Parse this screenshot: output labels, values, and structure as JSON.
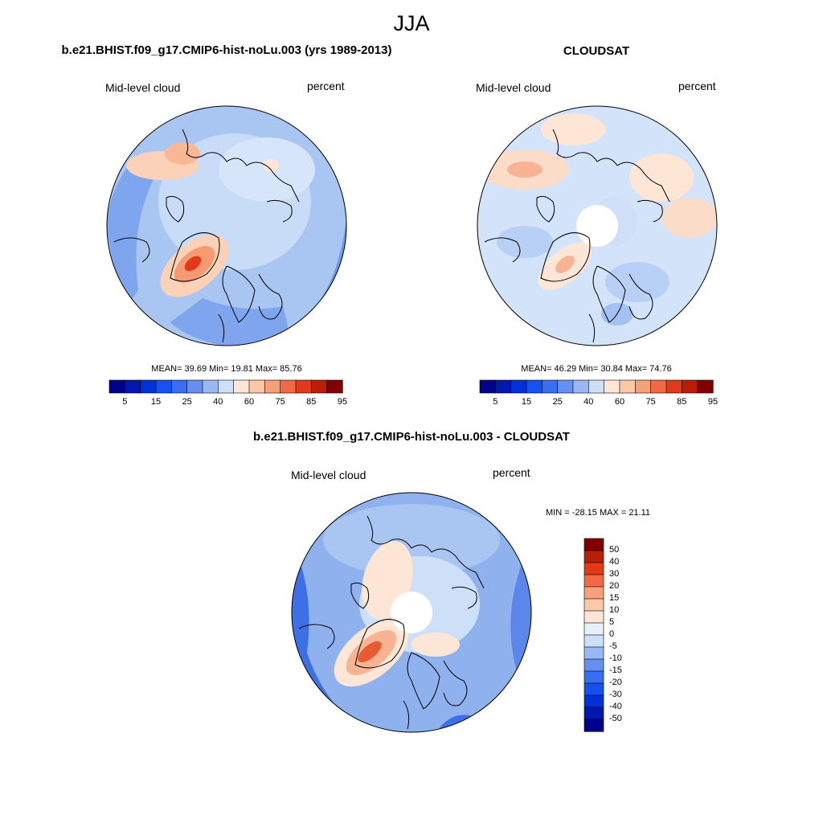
{
  "figure": {
    "season": "JJA",
    "panels": [
      {
        "title": "b.e21.BHIST.f09_g17.CMIP6-hist-noLu.003 (yrs 1989-2013)",
        "variable": "Mid-level cloud",
        "units": "percent",
        "stats": {
          "mean": "39.69",
          "min": "19.81",
          "max": "85.76"
        },
        "stats_text": "MEAN=  39.69  Min=  19.81  Max=  85.76"
      },
      {
        "title": "CLOUDSAT",
        "variable": "Mid-level cloud",
        "units": "percent",
        "stats": {
          "mean": "46.29",
          "min": "30.84",
          "max": "74.76"
        },
        "stats_text": "MEAN=  46.29  Min=  30.84  Max=  74.76"
      },
      {
        "title": "b.e21.BHIST.f09_g17.CMIP6-hist-noLu.003 - CLOUDSAT",
        "variable": "Mid-level cloud",
        "units": "percent",
        "stats": {
          "min": "-28.15",
          "max": "21.11"
        },
        "stats_text": "MIN = -28.15 MAX =  21.11"
      }
    ]
  },
  "colorbar_abs": {
    "colors": [
      "#00008b",
      "#0018b0",
      "#0030d8",
      "#1550f0",
      "#3a6ef2",
      "#6590f2",
      "#9ab8f4",
      "#cde0f8",
      "#fde6d6",
      "#fcc8a8",
      "#f8a07a",
      "#f26a45",
      "#e23a18",
      "#b81e08",
      "#800000"
    ],
    "tick_labels": [
      "5",
      "15",
      "25",
      "40",
      "60",
      "75",
      "85",
      "95"
    ]
  },
  "colorbar_diff": {
    "colors_top_to_bottom": [
      "#800000",
      "#b81e08",
      "#e23a18",
      "#f26a45",
      "#f8a07a",
      "#fcc8a8",
      "#fde6d6",
      "#e8f0fb",
      "#cde0f8",
      "#9ab8f4",
      "#6590f2",
      "#3a6ef2",
      "#1550f0",
      "#0030d8",
      "#0018b0",
      "#00008b"
    ],
    "tick_labels": [
      "50",
      "40",
      "30",
      "20",
      "15",
      "10",
      "5",
      "0",
      "-5",
      "-10",
      "-15",
      "-20",
      "-30",
      "-40",
      "-50"
    ]
  },
  "colors": {
    "ocean_low": "#c5dbf6",
    "mid_blue": "#8fb2ef",
    "deep_blue": "#3d6fe6",
    "warm_light": "#fde6d6",
    "warm_mid": "#f8a07a",
    "warm_strong": "#e23a18",
    "missing": "#ffffff",
    "coast": "#000000"
  }
}
